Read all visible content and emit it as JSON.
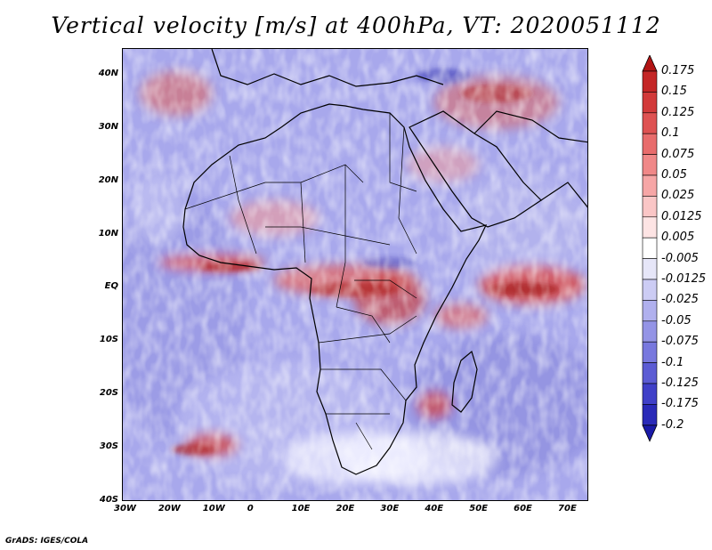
{
  "title": "Vertical velocity [m/s] at 400hPa, VT: 2020051112",
  "footer": "GrADS: IGES/COLA",
  "lat_labels": [
    "40N",
    "30N",
    "20N",
    "10N",
    "EQ",
    "10S",
    "20S",
    "30S",
    "40S"
  ],
  "lon_labels": [
    "30W",
    "20W",
    "10W",
    "0",
    "10E",
    "20E",
    "30E",
    "40E",
    "50E",
    "60E",
    "70E"
  ],
  "colorbar": {
    "levels": [
      "0.175",
      "0.15",
      "0.125",
      "0.1",
      "0.075",
      "0.05",
      "0.025",
      "0.0125",
      "0.005",
      "-0.005",
      "-0.0125",
      "-0.025",
      "-0.05",
      "-0.075",
      "-0.1",
      "-0.125",
      "-0.175",
      "-0.2"
    ],
    "colors": [
      "#b21414",
      "#c42626",
      "#d23a3a",
      "#de5252",
      "#e86c6c",
      "#f08888",
      "#f6a6a6",
      "#fac6c6",
      "#fde4e4",
      "#ffffff",
      "#e6e6f8",
      "#ccccf4",
      "#b0b0ee",
      "#9494e6",
      "#7878de",
      "#5c5cd4",
      "#4040c8",
      "#2a2ab8",
      "#1a1aa8"
    ]
  },
  "domain": {
    "lon_min": -30,
    "lon_max": 75,
    "lat_min": -40,
    "lat_max": 45
  }
}
